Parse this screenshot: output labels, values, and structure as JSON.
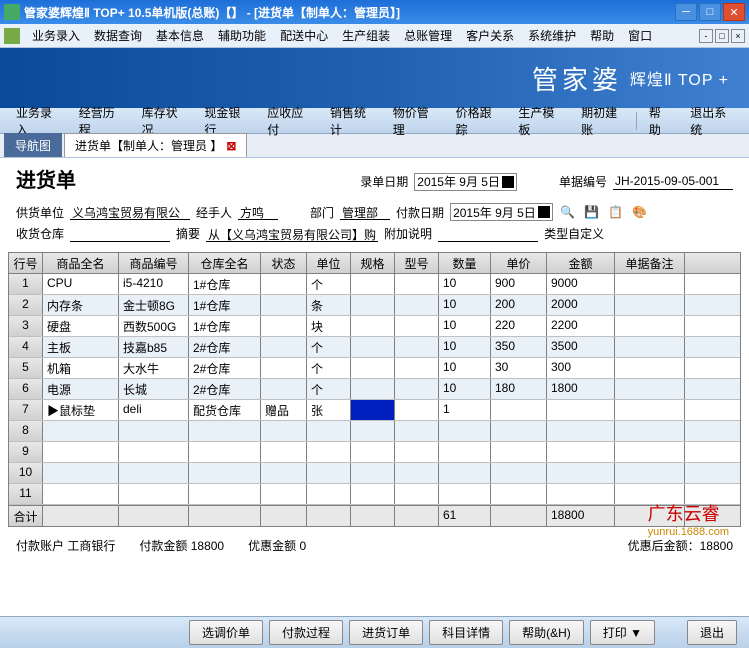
{
  "window": {
    "title": "管家婆辉煌Ⅱ TOP+ 10.5单机版(总账)【】 - [进货单【制单人：管理员】]"
  },
  "menu": [
    "业务录入",
    "数据查询",
    "基本信息",
    "辅助功能",
    "配送中心",
    "生产组装",
    "总账管理",
    "客户关系",
    "系统维护",
    "帮助",
    "窗口"
  ],
  "banner": {
    "main": "管家婆",
    "sub": "辉煌Ⅱ TOP +"
  },
  "funcs": [
    "业务录入",
    "经营历程",
    "库存状况",
    "现金银行",
    "应收应付",
    "销售统计",
    "物价管理",
    "价格跟踪",
    "生产模板",
    "期初建账",
    "帮助",
    "退出系统"
  ],
  "tabs": {
    "nav": "导航图",
    "active": "进货单【制单人：管理员 】"
  },
  "form": {
    "title": "进货单",
    "entry_date_label": "录单日期",
    "entry_date": "2015年 9月 5日",
    "doc_no_label": "单据编号",
    "doc_no": "JH-2015-09-05-001",
    "supplier_label": "供货单位",
    "supplier": "义乌鸿宝贸易有限公",
    "handler_label": "经手人",
    "handler": "方鸣",
    "dept_label": "部门",
    "dept": "管理部",
    "pay_date_label": "付款日期",
    "pay_date": "2015年 9月 5日",
    "recv_wh_label": "收货仓库",
    "recv_wh": "",
    "summary_label": "摘要",
    "summary": "从【义乌鸿宝贸易有限公司】购",
    "attach_label": "附加说明",
    "attach": "",
    "custom_label": "类型自定义"
  },
  "grid": {
    "headers": [
      "行号",
      "商品全名",
      "商品编号",
      "仓库全名",
      "状态",
      "单位",
      "规格",
      "型号",
      "数量",
      "单价",
      "金额",
      "单据备注"
    ],
    "rows": [
      {
        "n": "1",
        "name": "CPU",
        "code": "i5-4210",
        "wh": "1#仓库",
        "st": "",
        "unit": "个",
        "spec": "",
        "model": "",
        "qty": "10",
        "price": "900",
        "amt": "9000",
        "memo": ""
      },
      {
        "n": "2",
        "name": "内存条",
        "code": "金士顿8G",
        "wh": "1#仓库",
        "st": "",
        "unit": "条",
        "spec": "",
        "model": "",
        "qty": "10",
        "price": "200",
        "amt": "2000",
        "memo": ""
      },
      {
        "n": "3",
        "name": "硬盘",
        "code": "西数500G",
        "wh": "1#仓库",
        "st": "",
        "unit": "块",
        "spec": "",
        "model": "",
        "qty": "10",
        "price": "220",
        "amt": "2200",
        "memo": ""
      },
      {
        "n": "4",
        "name": "主板",
        "code": "技嘉b85",
        "wh": "2#仓库",
        "st": "",
        "unit": "个",
        "spec": "",
        "model": "",
        "qty": "10",
        "price": "350",
        "amt": "3500",
        "memo": ""
      },
      {
        "n": "5",
        "name": "机箱",
        "code": "大水牛",
        "wh": "2#仓库",
        "st": "",
        "unit": "个",
        "spec": "",
        "model": "",
        "qty": "10",
        "price": "30",
        "amt": "300",
        "memo": ""
      },
      {
        "n": "6",
        "name": "电源",
        "code": "长城",
        "wh": "2#仓库",
        "st": "",
        "unit": "个",
        "spec": "",
        "model": "",
        "qty": "10",
        "price": "180",
        "amt": "1800",
        "memo": ""
      },
      {
        "n": "7",
        "name": "鼠标垫",
        "code": "deli",
        "wh": "配货仓库",
        "st": "赠品",
        "unit": "张",
        "spec": "",
        "model": "",
        "qty": "1",
        "price": "",
        "amt": "",
        "memo": ""
      }
    ],
    "empties": [
      "8",
      "9",
      "10",
      "11"
    ],
    "total_label": "合计",
    "total_qty": "61",
    "total_amt": "18800"
  },
  "bottom": {
    "acct_label": "付款账户",
    "acct": "工商银行",
    "pay_amt_label": "付款金额",
    "pay_amt": "18800",
    "disc_label": "优惠金额",
    "disc": "0",
    "after_disc_label": "优惠后金额：",
    "after_disc": "18800"
  },
  "buttons": [
    "选调价单",
    "付款过程",
    "进货订单",
    "科目详情",
    "帮助(&H)",
    "打印 ▼",
    "退出"
  ],
  "watermark": {
    "main": "广东云睿",
    "sub": "yunrui.1688.com"
  }
}
